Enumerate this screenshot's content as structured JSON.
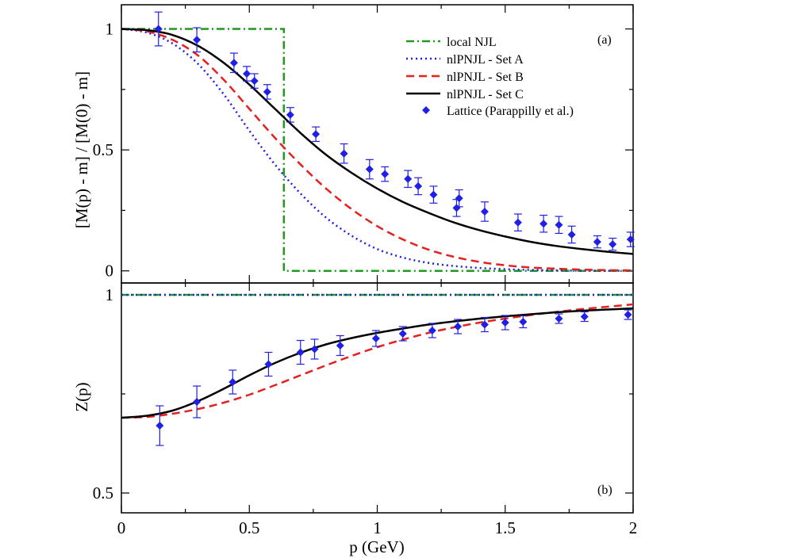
{
  "chart_data": [
    {
      "type": "line",
      "panel_label": "(a)",
      "ylabel": "[M(p) - m] / [M(0) - m]",
      "xlabel": "",
      "xlim": [
        0,
        2
      ],
      "ylim": [
        -0.05,
        1.1
      ],
      "yticks": [
        0,
        0.5,
        1
      ],
      "ytick_labels": [
        "0",
        "0.5",
        "1"
      ],
      "legend_position": "top-right",
      "legend": [
        "local NJL",
        "nlPNJL - Set A",
        "nlPNJL - Set B",
        "nlPNJL - Set C",
        "Lattice (Parappilly et al.)"
      ],
      "series": [
        {
          "name": "local NJL",
          "style": "dash-dot",
          "color": "#1f9a1f",
          "x": [
            0,
            0.635,
            0.635,
            2.0
          ],
          "y": [
            1,
            1,
            0,
            0
          ]
        },
        {
          "name": "nlPNJL - Set A",
          "style": "dotted",
          "color": "#1f1fe6",
          "x": [
            0,
            0.1,
            0.2,
            0.3,
            0.4,
            0.5,
            0.6,
            0.7,
            0.8,
            0.9,
            1.0,
            1.1,
            1.2,
            1.3,
            1.4,
            1.5,
            1.6,
            1.7,
            1.8,
            1.9,
            2.0
          ],
          "y": [
            1.0,
            0.985,
            0.94,
            0.855,
            0.73,
            0.58,
            0.44,
            0.32,
            0.22,
            0.145,
            0.09,
            0.055,
            0.033,
            0.02,
            0.012,
            0.007,
            0.004,
            0.002,
            0.001,
            0.0005,
            0.0002
          ]
        },
        {
          "name": "nlPNJL - Set B",
          "style": "dashed",
          "color": "#e61f1f",
          "x": [
            0,
            0.1,
            0.2,
            0.3,
            0.4,
            0.5,
            0.6,
            0.7,
            0.8,
            0.9,
            1.0,
            1.1,
            1.2,
            1.3,
            1.4,
            1.5,
            1.6,
            1.7,
            1.8,
            1.9,
            2.0
          ],
          "y": [
            1.0,
            0.99,
            0.955,
            0.89,
            0.79,
            0.67,
            0.55,
            0.44,
            0.34,
            0.255,
            0.185,
            0.13,
            0.088,
            0.058,
            0.037,
            0.023,
            0.014,
            0.009,
            0.005,
            0.003,
            0.002
          ]
        },
        {
          "name": "nlPNJL - Set C",
          "style": "solid",
          "color": "#000000",
          "x": [
            0,
            0.1,
            0.2,
            0.3,
            0.4,
            0.5,
            0.6,
            0.7,
            0.8,
            0.9,
            1.0,
            1.1,
            1.2,
            1.3,
            1.4,
            1.5,
            1.6,
            1.7,
            1.8,
            1.9,
            2.0
          ],
          "y": [
            1.0,
            0.995,
            0.975,
            0.93,
            0.86,
            0.77,
            0.67,
            0.57,
            0.48,
            0.405,
            0.34,
            0.285,
            0.24,
            0.2,
            0.168,
            0.142,
            0.12,
            0.103,
            0.09,
            0.079,
            0.07
          ]
        },
        {
          "name": "Lattice (Parappilly et al.)",
          "style": "points",
          "color": "#1f1fe6",
          "x": [
            0.145,
            0.295,
            0.44,
            0.49,
            0.52,
            0.57,
            0.66,
            0.76,
            0.87,
            0.97,
            1.03,
            1.12,
            1.16,
            1.22,
            1.31,
            1.32,
            1.42,
            1.55,
            1.65,
            1.71,
            1.76,
            1.86,
            1.92,
            1.99
          ],
          "y": [
            1.0,
            0.955,
            0.86,
            0.815,
            0.785,
            0.74,
            0.645,
            0.565,
            0.485,
            0.42,
            0.4,
            0.38,
            0.35,
            0.315,
            0.26,
            0.3,
            0.245,
            0.2,
            0.195,
            0.19,
            0.15,
            0.12,
            0.11,
            0.13
          ],
          "err": [
            0.07,
            0.05,
            0.04,
            0.03,
            0.03,
            0.03,
            0.03,
            0.03,
            0.04,
            0.04,
            0.03,
            0.035,
            0.035,
            0.035,
            0.035,
            0.035,
            0.04,
            0.035,
            0.035,
            0.035,
            0.035,
            0.025,
            0.025,
            0.03
          ]
        }
      ]
    },
    {
      "type": "line",
      "panel_label": "(b)",
      "ylabel": "Z(p)",
      "xlabel": "p (GeV)",
      "xlim": [
        0,
        2
      ],
      "ylim": [
        0.45,
        1.03
      ],
      "xticks": [
        0,
        0.5,
        1,
        1.5,
        2
      ],
      "xtick_labels": [
        "0",
        "0.5",
        "1",
        "1.5",
        "2"
      ],
      "yticks": [
        0.5,
        1
      ],
      "ytick_labels": [
        "0.5",
        "1"
      ],
      "series": [
        {
          "name": "local NJL",
          "style": "dash-dot",
          "color": "#1f9a1f",
          "x": [
            0,
            2.0
          ],
          "y": [
            1.0,
            1.0
          ]
        },
        {
          "name": "nlPNJL - Set A",
          "style": "dotted",
          "color": "#1f1fe6",
          "x": [
            0,
            2.0
          ],
          "y": [
            1.0,
            1.0
          ]
        },
        {
          "name": "nlPNJL - Set B",
          "style": "dashed",
          "color": "#e61f1f",
          "x": [
            0,
            0.1,
            0.2,
            0.3,
            0.4,
            0.5,
            0.6,
            0.7,
            0.8,
            0.9,
            1.0,
            1.1,
            1.2,
            1.3,
            1.4,
            1.5,
            1.6,
            1.7,
            1.8,
            1.9,
            2.0
          ],
          "y": [
            0.69,
            0.692,
            0.7,
            0.712,
            0.728,
            0.748,
            0.772,
            0.797,
            0.822,
            0.846,
            0.868,
            0.887,
            0.904,
            0.918,
            0.93,
            0.94,
            0.949,
            0.957,
            0.964,
            0.97,
            0.976
          ]
        },
        {
          "name": "nlPNJL - Set C",
          "style": "solid",
          "color": "#000000",
          "x": [
            0,
            0.1,
            0.2,
            0.3,
            0.4,
            0.5,
            0.6,
            0.7,
            0.8,
            0.9,
            1.0,
            1.1,
            1.2,
            1.3,
            1.4,
            1.5,
            1.6,
            1.7,
            1.8,
            1.9,
            2.0
          ],
          "y": [
            0.69,
            0.695,
            0.708,
            0.732,
            0.763,
            0.797,
            0.828,
            0.854,
            0.875,
            0.891,
            0.904,
            0.915,
            0.925,
            0.933,
            0.94,
            0.946,
            0.951,
            0.956,
            0.96,
            0.963,
            0.966
          ]
        },
        {
          "name": "Lattice (Parappilly et al.)",
          "style": "points",
          "color": "#1f1fe6",
          "x": [
            0.15,
            0.295,
            0.435,
            0.575,
            0.7,
            0.755,
            0.855,
            0.995,
            1.1,
            1.215,
            1.315,
            1.42,
            1.5,
            1.57,
            1.71,
            1.81,
            1.98
          ],
          "y": [
            0.67,
            0.73,
            0.78,
            0.825,
            0.855,
            0.863,
            0.872,
            0.89,
            0.902,
            0.91,
            0.92,
            0.925,
            0.93,
            0.932,
            0.94,
            0.945,
            0.95
          ],
          "err": [
            0.05,
            0.04,
            0.03,
            0.03,
            0.03,
            0.025,
            0.025,
            0.02,
            0.018,
            0.018,
            0.018,
            0.018,
            0.018,
            0.015,
            0.012,
            0.012,
            0.012
          ]
        }
      ]
    }
  ]
}
